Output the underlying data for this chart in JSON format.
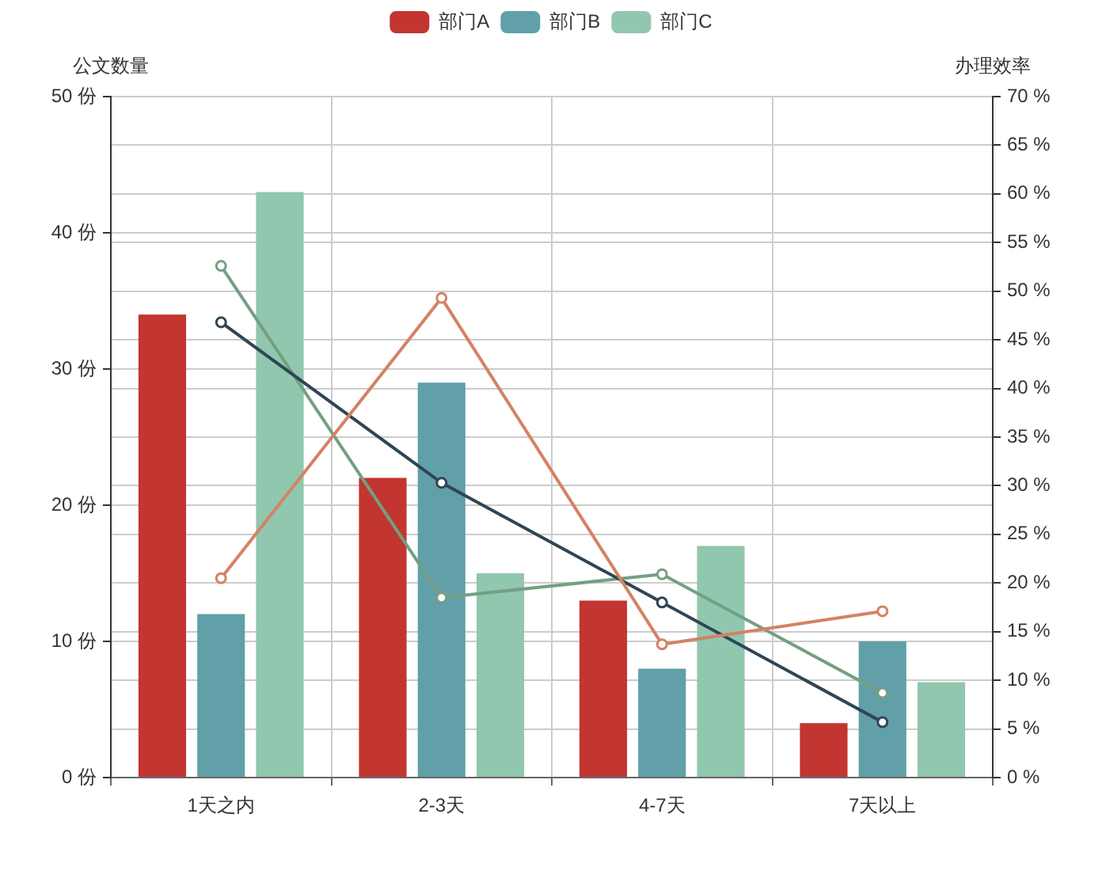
{
  "chart_data": {
    "type": "bar",
    "categories": [
      "1天之内",
      "2-3天",
      "4-7天",
      "7天以上"
    ],
    "ylabel": "公文数量",
    "y2label": "办理效率",
    "series": [
      {
        "name": "部门A",
        "color": "#c23531",
        "values": [
          34,
          22,
          13,
          4
        ]
      },
      {
        "name": "部门B",
        "color": "#61a0a8",
        "values": [
          12,
          29,
          8,
          10
        ]
      },
      {
        "name": "部门C",
        "color": "#91c7ae",
        "values": [
          43,
          15,
          17,
          7
        ]
      },
      {
        "type": "line",
        "axis": "y2",
        "color": "#d48265",
        "values": [
          20.5,
          49.3,
          13.7,
          17.1
        ]
      },
      {
        "type": "line",
        "axis": "y2",
        "color": "#2f4554",
        "values": [
          46.8,
          30.3,
          18.0,
          5.7
        ]
      },
      {
        "type": "line",
        "axis": "y2",
        "color": "#749f83",
        "values": [
          52.6,
          18.5,
          20.9,
          8.7
        ]
      }
    ],
    "ylim": [
      0,
      50
    ],
    "yticks": [
      {
        "value": 0,
        "label": "0 份"
      },
      {
        "value": 10,
        "label": "10 份"
      },
      {
        "value": 20,
        "label": "20 份"
      },
      {
        "value": 30,
        "label": "30 份"
      },
      {
        "value": 40,
        "label": "40 份"
      },
      {
        "value": 50,
        "label": "50 份"
      }
    ],
    "y2lim": [
      0,
      70
    ],
    "y2ticks": [
      {
        "value": 0,
        "label": "0 %"
      },
      {
        "value": 5,
        "label": "5 %"
      },
      {
        "value": 10,
        "label": "10 %"
      },
      {
        "value": 15,
        "label": "15 %"
      },
      {
        "value": 20,
        "label": "20 %"
      },
      {
        "value": 25,
        "label": "25 %"
      },
      {
        "value": 30,
        "label": "30 %"
      },
      {
        "value": 35,
        "label": "35 %"
      },
      {
        "value": 40,
        "label": "40 %"
      },
      {
        "value": 45,
        "label": "45 %"
      },
      {
        "value": 50,
        "label": "50 %"
      },
      {
        "value": 55,
        "label": "55 %"
      },
      {
        "value": 60,
        "label": "60 %"
      },
      {
        "value": 65,
        "label": "65 %"
      },
      {
        "value": 70,
        "label": "70 %"
      }
    ],
    "grid": true,
    "legend": "top",
    "marker": "circle"
  }
}
